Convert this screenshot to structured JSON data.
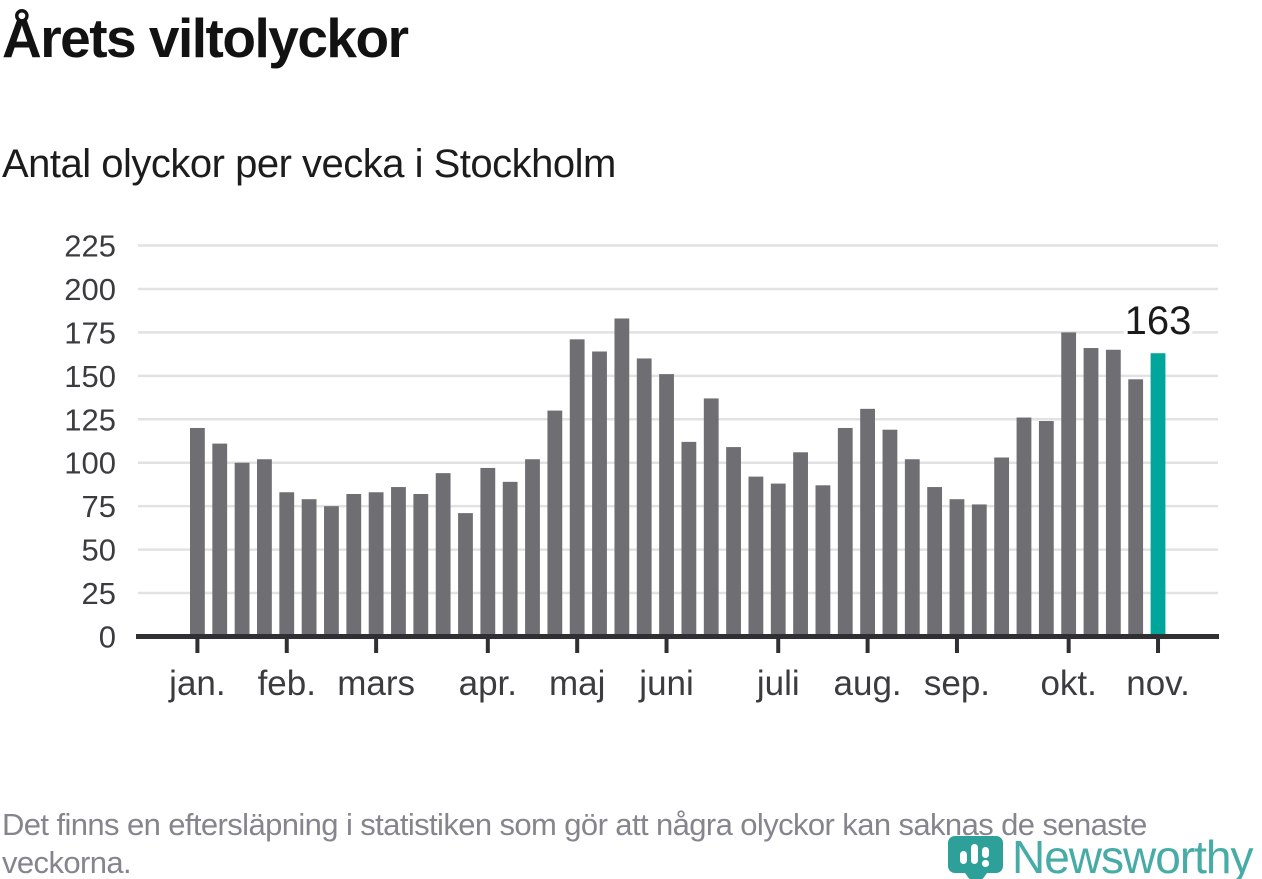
{
  "chart_data": {
    "type": "bar",
    "title": "Årets viltolyckor",
    "subtitle": "Antal olyckor per vecka i Stockholm",
    "values": [
      120,
      111,
      100,
      102,
      83,
      79,
      75,
      82,
      83,
      86,
      82,
      94,
      71,
      97,
      89,
      102,
      130,
      171,
      164,
      183,
      160,
      151,
      112,
      137,
      109,
      92,
      88,
      106,
      87,
      120,
      131,
      119,
      102,
      86,
      79,
      76,
      103,
      126,
      124,
      175,
      166,
      165,
      148,
      163
    ],
    "month_ticks": [
      {
        "label": "jan.",
        "bar_index": 0
      },
      {
        "label": "feb.",
        "bar_index": 4
      },
      {
        "label": "mars",
        "bar_index": 8
      },
      {
        "label": "apr.",
        "bar_index": 13
      },
      {
        "label": "maj",
        "bar_index": 17
      },
      {
        "label": "juni",
        "bar_index": 21
      },
      {
        "label": "juli",
        "bar_index": 26
      },
      {
        "label": "aug.",
        "bar_index": 30
      },
      {
        "label": "sep.",
        "bar_index": 34
      },
      {
        "label": "okt.",
        "bar_index": 39
      },
      {
        "label": "nov.",
        "bar_index": 43
      }
    ],
    "yticks": [
      0,
      25,
      50,
      75,
      100,
      125,
      150,
      175,
      200,
      225
    ],
    "ylim": [
      0,
      225
    ],
    "grid": true,
    "legend": "none",
    "bar_color": "#6e6e73",
    "highlight_color": "#00a59b",
    "highlight_index": 43,
    "annotation": {
      "text": "163",
      "bar_index": 43
    },
    "xlabel": "",
    "ylabel": ""
  },
  "footer": {
    "note": "Det finns en eftersläpning i statistiken som gör att några olyckor kan saknas de senaste veckorna."
  },
  "logo": {
    "text": "Newsworthy",
    "color": "#2da099"
  }
}
